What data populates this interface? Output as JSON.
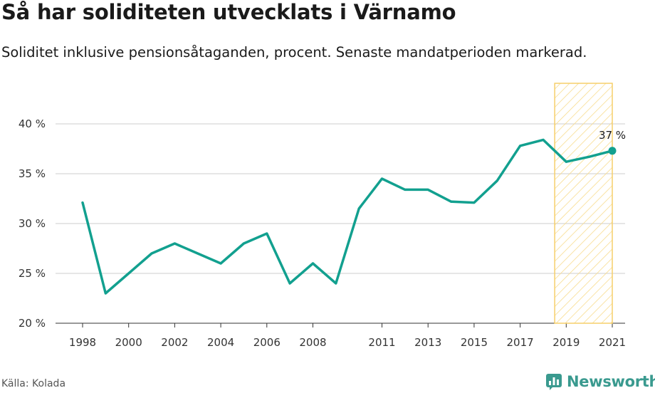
{
  "header": {
    "title": "Så har soliditeten utvecklats i Värnamo",
    "subtitle": "Soliditet inklusive pensionsåtaganden, procent. Senaste mandatperioden markerad."
  },
  "footer": {
    "source": "Källa: Kolada",
    "brand": "Newsworthy"
  },
  "colors": {
    "line": "#12a08f",
    "highlight_stroke": "#f6cf6a",
    "highlight_hatch": "#f8dc8e",
    "grid": "#cccccc",
    "brand": "#3a9a8f"
  },
  "chart_data": {
    "type": "line",
    "x": [
      1998,
      1999,
      2000,
      2001,
      2002,
      2003,
      2004,
      2005,
      2006,
      2007,
      2008,
      2009,
      2010,
      2011,
      2012,
      2013,
      2014,
      2015,
      2016,
      2017,
      2018,
      2019,
      2020,
      2021
    ],
    "series": [
      {
        "values": [
          32.1,
          23.0,
          25.0,
          27.0,
          28.0,
          27.0,
          26.0,
          28.0,
          29.0,
          24.0,
          26.0,
          24.0,
          31.5,
          34.5,
          33.4,
          33.4,
          32.2,
          32.1,
          34.3,
          37.8,
          38.4,
          36.2,
          36.7,
          37.3
        ]
      }
    ],
    "x_ticks": [
      1998,
      2000,
      2002,
      2004,
      2006,
      2008,
      2011,
      2013,
      2015,
      2017,
      2019,
      2021
    ],
    "x_tick_labels": [
      "1998",
      "2000",
      "2002",
      "2004",
      "2006",
      "2008",
      "2011",
      "2013",
      "2015",
      "2017",
      "2019",
      "2021"
    ],
    "y_ticks": [
      20,
      25,
      30,
      35,
      40
    ],
    "y_tick_labels": [
      "20 %",
      "25 %",
      "30 %",
      "35 %",
      "40 %"
    ],
    "ylim": [
      20,
      40
    ],
    "highlight_range": [
      2018.5,
      2021
    ],
    "end_label": "37 %",
    "grid": "horizontal"
  }
}
